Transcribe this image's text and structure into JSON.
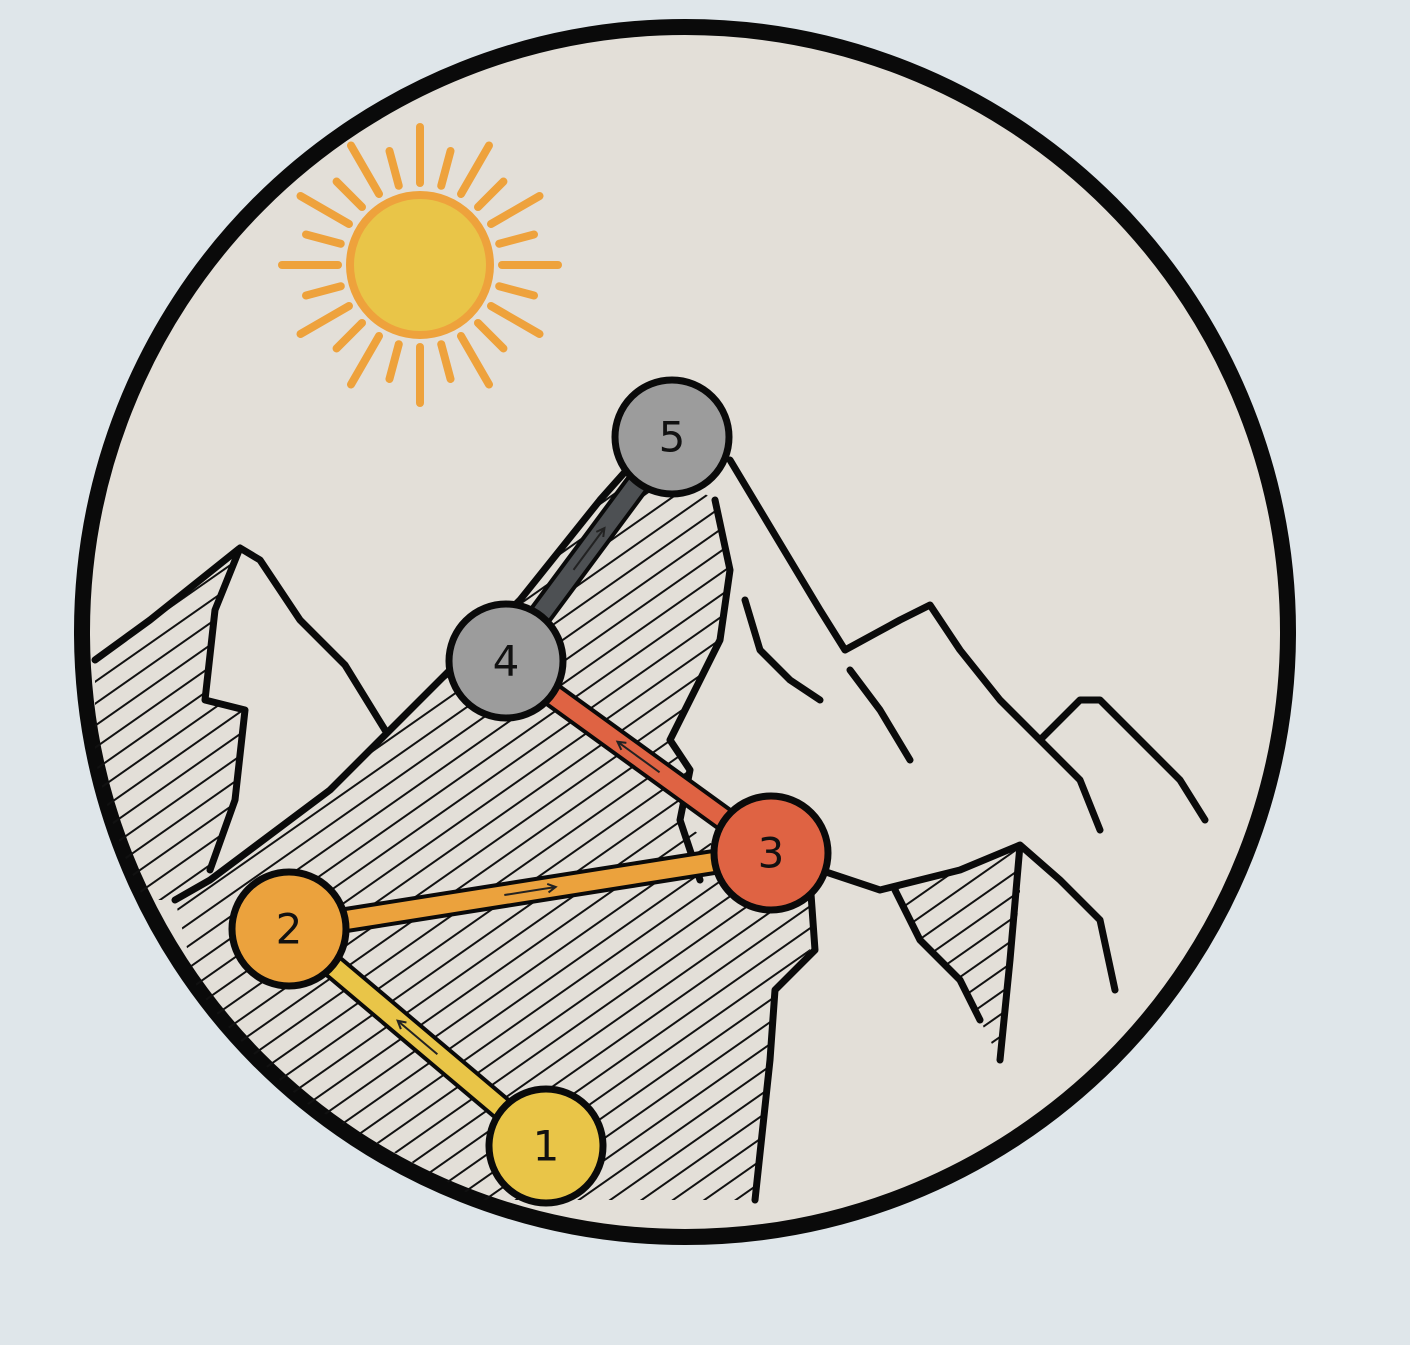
{
  "colors": {
    "page_background": "#dfe6ea",
    "circle_fill": "#e3dfd8",
    "outline": "#0a0a0a",
    "sun_core": "#e9c548",
    "sun_rays": "#eea23c"
  },
  "steps": [
    {
      "label": "1",
      "color": "#e9c548"
    },
    {
      "label": "2",
      "color": "#eba23d"
    },
    {
      "label": "3",
      "color": "#df6343"
    },
    {
      "label": "4",
      "color": "#9c9c9c"
    },
    {
      "label": "5",
      "color": "#9c9c9c"
    }
  ],
  "connectors": [
    {
      "from": "1",
      "to": "2",
      "color": "#e9c548"
    },
    {
      "from": "2",
      "to": "3",
      "color": "#eba23d"
    },
    {
      "from": "3",
      "to": "4",
      "color": "#df6343"
    },
    {
      "from": "4",
      "to": "5",
      "color": "#4d5053"
    }
  ],
  "icons": {
    "sun": "sun-icon",
    "mountains": "mountain-range-icon"
  }
}
